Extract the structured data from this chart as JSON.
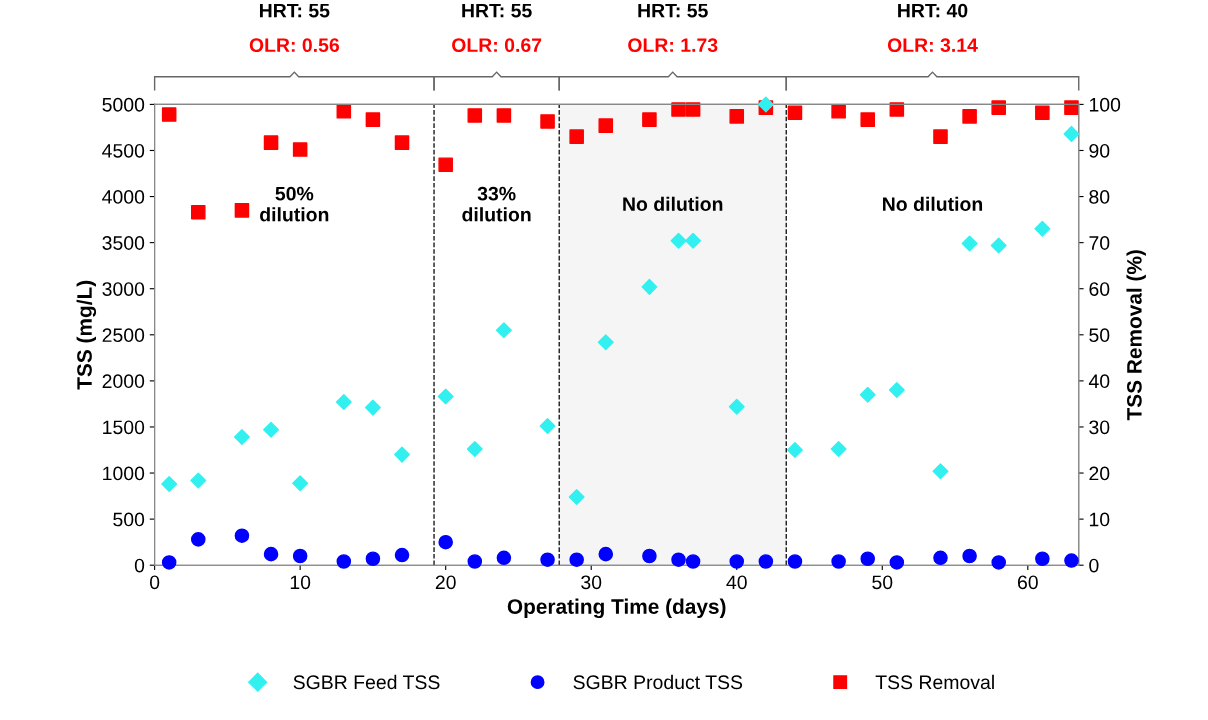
{
  "chart_data": {
    "type": "scatter",
    "xlabel": "Operating Time (days)",
    "ylabel": "TSS (mg/L)",
    "y2label": "TSS Removal (%)",
    "x": [
      1,
      3,
      6,
      8,
      10,
      13,
      15,
      17,
      20,
      22,
      24,
      27,
      29,
      31,
      34,
      36,
      37,
      40,
      42,
      44,
      47,
      49,
      51,
      54,
      56,
      58,
      61,
      63
    ],
    "series": [
      {
        "name": "SGBR Feed TSS",
        "color": "#33f0f0",
        "marker": "diamond",
        "values": [
          880,
          920,
          1390,
          1470,
          890,
          1770,
          1710,
          1200,
          1830,
          1260,
          2550,
          1510,
          740,
          2420,
          3020,
          3520,
          3520,
          1720,
          5000,
          1250,
          1260,
          1850,
          1900,
          1020,
          3490,
          3470,
          3650,
          4680
        ]
      },
      {
        "name": "SGBR Product TSS",
        "color": "#0000ff",
        "marker": "circle",
        "values": [
          30,
          280,
          320,
          120,
          100,
          40,
          70,
          110,
          250,
          40,
          80,
          60,
          60,
          120,
          100,
          60,
          40,
          40,
          40,
          40,
          40,
          70,
          30,
          80,
          100,
          30,
          70,
          50
        ]
      },
      {
        "name": "TSS Removal",
        "color": "#ff0000",
        "marker": "square",
        "axis": "y2",
        "values": [
          97.8,
          76.6,
          77.0,
          91.7,
          90.2,
          98.5,
          96.7,
          91.7,
          86.9,
          97.6,
          97.6,
          96.3,
          93.0,
          95.4,
          96.7,
          98.9,
          98.9,
          97.4,
          99.3,
          98.2,
          98.5,
          96.7,
          98.9,
          93.0,
          97.4,
          99.3,
          98.2,
          99.3
        ]
      }
    ],
    "xlim": [
      0,
      63.5
    ],
    "xticks": [
      0,
      10,
      20,
      30,
      40,
      50,
      60
    ],
    "ylim": [
      0,
      5000
    ],
    "yticks": [
      0,
      500,
      1000,
      1500,
      2000,
      2500,
      3000,
      3500,
      4000,
      4500,
      5000
    ],
    "y2lim": [
      0,
      100
    ],
    "y2ticks": [
      0,
      10,
      20,
      30,
      40,
      50,
      60,
      70,
      80,
      90,
      100
    ],
    "ref_lines": [
      {
        "axis": "x",
        "value": 19.2,
        "line_style": "dashed",
        "color": "#000000"
      },
      {
        "axis": "x",
        "value": 27.8,
        "line_style": "dashed",
        "color": "#000000"
      },
      {
        "axis": "x",
        "value": 43.4,
        "line_style": "dashed",
        "color": "#000000"
      }
    ],
    "bands": [
      {
        "axis": "x",
        "from": 27.8,
        "to": 43.4,
        "color": "#f5f5f5"
      }
    ],
    "annotations": [
      "HRT: 55",
      "OLR: 0.56",
      "50%\ndilution",
      "HRT: 55",
      "OLR: 0.67",
      "33%\ndilution",
      "HRT: 55",
      "OLR: 1.73",
      "No dilution",
      "HRT: 40",
      "OLR: 3.14",
      "No dilution"
    ],
    "grid": false,
    "legend": "bottom"
  }
}
